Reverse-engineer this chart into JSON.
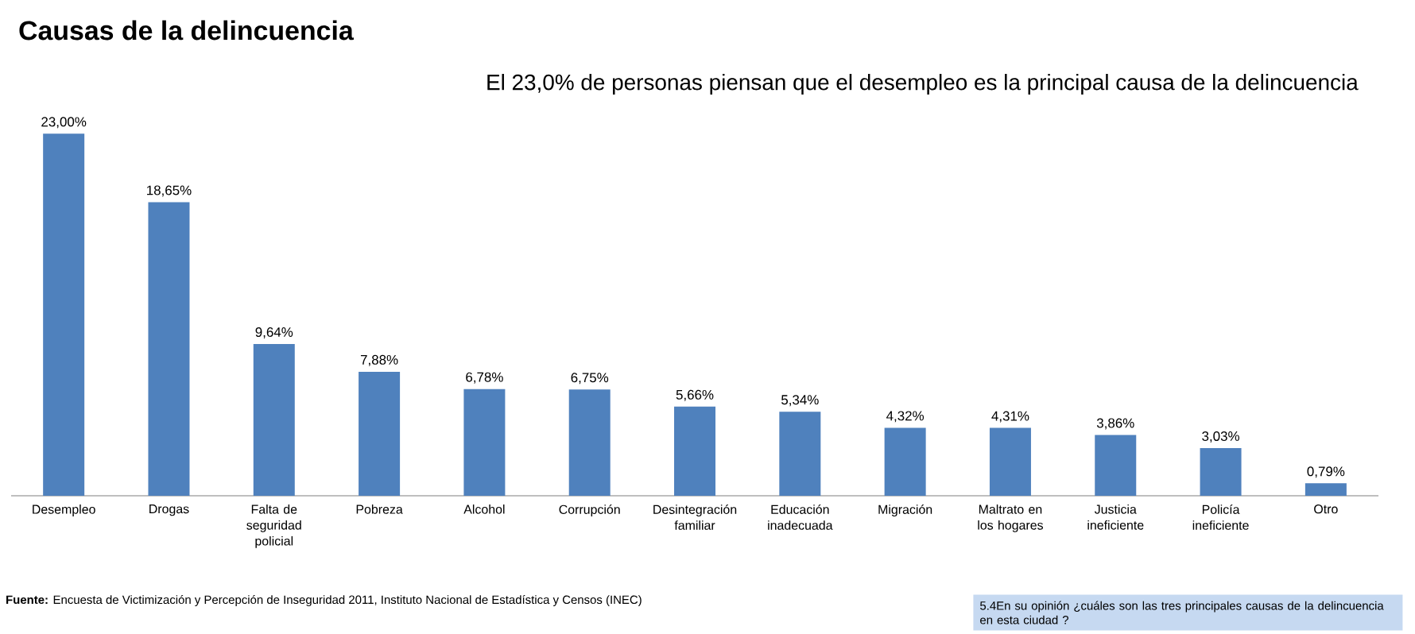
{
  "chart_data": {
    "type": "bar",
    "title": "Causas de la delincuencia",
    "subtitle": "El 23,0% de personas piensan que el desempleo es la principal causa de la delincuencia",
    "categories": [
      "Desempleo",
      "Drogas",
      "Falta de seguridad policial",
      "Pobreza",
      "Alcohol",
      "Corrupción",
      "Desintegración familiar",
      "Educación inadecuada",
      "Migración",
      "Maltrato en los hogares",
      "Justicia ineficiente",
      "Policía ineficiente",
      "Otro"
    ],
    "values": [
      23.0,
      18.65,
      9.64,
      7.88,
      6.78,
      6.75,
      5.66,
      5.34,
      4.32,
      4.31,
      3.86,
      3.03,
      0.79
    ],
    "value_labels": [
      "23,00%",
      "18,65%",
      "9,64%",
      "7,88%",
      "6,78%",
      "6,75%",
      "5,66%",
      "5,34%",
      "4,32%",
      "4,31%",
      "3,86%",
      "3,03%",
      "0,79%"
    ],
    "color": "#4f81bd",
    "annotations": [
      "**Fuente:** Encuesta de Victimización y Percepción de Inseguridad 2011, Instituto Nacional de Estadística y Censos (INEC)",
      "5.4En su opinión ¿cuáles son las tres principales causas de la delincuencia en esta ciudad ?"
    ]
  }
}
